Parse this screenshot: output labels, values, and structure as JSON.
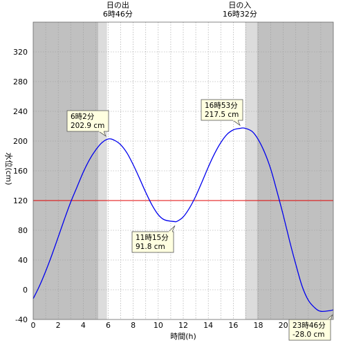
{
  "chart_data": {
    "type": "line",
    "xlabel": "時間(h)",
    "ylabel": "水位(cm)",
    "xlim": [
      0,
      24
    ],
    "ylim": [
      -40,
      360
    ],
    "x_ticks": [
      0,
      2,
      4,
      6,
      8,
      10,
      12,
      14,
      16,
      18,
      20
    ],
    "y_ticks": [
      -40,
      0,
      40,
      80,
      120,
      160,
      200,
      240,
      280,
      320
    ],
    "grid": true,
    "reference_line": {
      "y": 120,
      "color": "#e00000"
    },
    "bands": [
      {
        "from": 0,
        "to": 5.2,
        "color": "#c0c0c0"
      },
      {
        "from": 5.2,
        "to": 5.9,
        "color": "#dcdcdc"
      },
      {
        "from": 16.95,
        "to": 17.9,
        "color": "#dcdcdc"
      },
      {
        "from": 17.9,
        "to": 24,
        "color": "#c0c0c0"
      }
    ],
    "sun_events": [
      {
        "title": "日の出",
        "time": "6時46分",
        "x": 6.77
      },
      {
        "title": "日の入",
        "time": "16時32分",
        "x": 16.53
      }
    ],
    "extrema": [
      {
        "x": 6.033,
        "y": 202.9,
        "time": "6時2分",
        "value": "202.9 cm"
      },
      {
        "x": 11.25,
        "y": 91.8,
        "time": "11時15分",
        "value": "91.8 cm"
      },
      {
        "x": 16.883,
        "y": 217.5,
        "time": "16時53分",
        "value": "217.5 cm"
      },
      {
        "x": 23.767,
        "y": -28.0,
        "time": "23時46分",
        "value": "-28.0 cm"
      }
    ],
    "series": [
      {
        "color": "#0000ee",
        "points": [
          [
            0,
            -12
          ],
          [
            0.5,
            5
          ],
          [
            1,
            25
          ],
          [
            1.5,
            47
          ],
          [
            2,
            71
          ],
          [
            2.5,
            95
          ],
          [
            3,
            118
          ],
          [
            3.5,
            138
          ],
          [
            4,
            158
          ],
          [
            4.5,
            175
          ],
          [
            5,
            188
          ],
          [
            5.5,
            198
          ],
          [
            6.033,
            202.9
          ],
          [
            6.5,
            201
          ],
          [
            7,
            195
          ],
          [
            7.5,
            184
          ],
          [
            8,
            168
          ],
          [
            8.5,
            150
          ],
          [
            9,
            131
          ],
          [
            9.5,
            114
          ],
          [
            10,
            101
          ],
          [
            10.5,
            94
          ],
          [
            11.25,
            91.8
          ],
          [
            11.5,
            92
          ],
          [
            12,
            98
          ],
          [
            12.5,
            110
          ],
          [
            13,
            126
          ],
          [
            13.5,
            145
          ],
          [
            14,
            165
          ],
          [
            14.5,
            183
          ],
          [
            15,
            198
          ],
          [
            15.5,
            209
          ],
          [
            16,
            215
          ],
          [
            16.5,
            217
          ],
          [
            16.883,
            217.5
          ],
          [
            17.5,
            213
          ],
          [
            18,
            202
          ],
          [
            18.5,
            185
          ],
          [
            19,
            162
          ],
          [
            19.5,
            132
          ],
          [
            20,
            100
          ],
          [
            20.5,
            66
          ],
          [
            21,
            34
          ],
          [
            21.5,
            5
          ],
          [
            22,
            -14
          ],
          [
            22.5,
            -24
          ],
          [
            23,
            -29
          ],
          [
            23.767,
            -28.0
          ],
          [
            24,
            -27
          ]
        ]
      }
    ]
  }
}
